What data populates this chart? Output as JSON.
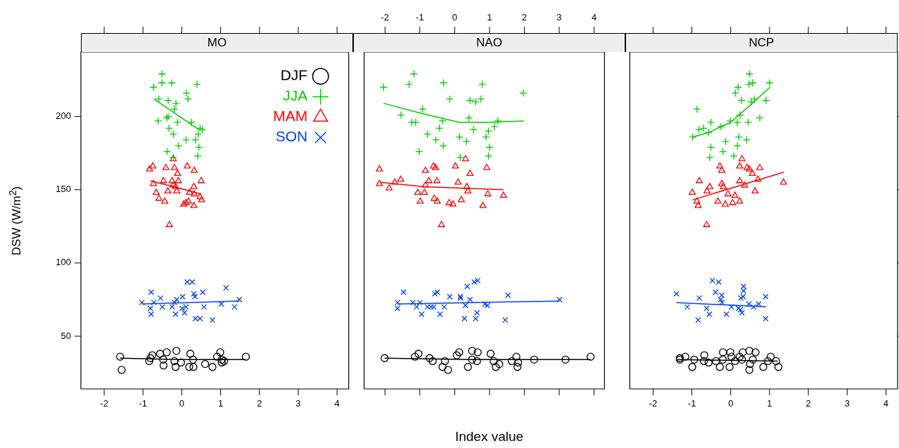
{
  "chart_data": [
    {
      "type": "scatter",
      "title": "MO",
      "ylabel": "DSW (W/m$^{2}$)",
      "xlim": [
        -2.6,
        4.3
      ],
      "xticks": [
        -2,
        -1,
        0,
        1,
        2,
        3,
        4
      ],
      "ylim": [
        14,
        244
      ],
      "yticks": [
        50,
        100,
        150,
        200
      ],
      "legend": "top right",
      "series": [
        {
          "name": "DJF",
          "color": "#000000",
          "marker": "circle",
          "x": [
            -1.59,
            -1.55,
            -0.84,
            -0.81,
            -0.76,
            -0.56,
            -0.39,
            -0.48,
            -0.47,
            -0.14,
            -0.19,
            -0.16,
            -0.02,
            0.22,
            0.29,
            0.19,
            0.3,
            0.6,
            0.79,
            0.99,
            0.91,
            1.03,
            1.09,
            1.03,
            1.65
          ],
          "values": [
            36,
            27,
            33,
            35,
            37,
            38,
            39,
            34,
            30,
            40,
            33,
            29,
            32,
            38,
            34,
            29,
            29,
            31,
            29,
            39,
            36,
            34,
            33,
            32,
            36
          ]
        },
        {
          "name": "JJA",
          "color": "#00cc00",
          "marker": "cross",
          "x": [
            -0.51,
            -0.73,
            -0.51,
            -0.26,
            0.39,
            0.12,
            0.16,
            -0.59,
            -0.35,
            -0.15,
            -0.19,
            -0.35,
            -0.61,
            -0.39,
            -0.11,
            0.25,
            0.47,
            0.53,
            -0.33,
            -0.22,
            0.11,
            0.35,
            -0.08,
            0.44,
            0.41,
            -0.38,
            -0.22,
            0.42
          ],
          "values": [
            229,
            220,
            223,
            223,
            222,
            216,
            212,
            212,
            211,
            209,
            205,
            200,
            197,
            199,
            196,
            196,
            192,
            191,
            192,
            188,
            184,
            184,
            180,
            179,
            173,
            176,
            172,
            188
          ]
        },
        {
          "name": "MAM",
          "color": "#ff0000",
          "marker": "triangle",
          "x": [
            -0.83,
            -0.75,
            -0.41,
            -0.19,
            0.14,
            0.32,
            -0.22,
            -0.11,
            0.5,
            -0.73,
            -0.47,
            -0.25,
            -0.09,
            -0.22,
            -0.16,
            0.31,
            -0.66,
            -0.36,
            -0.13,
            0.2,
            0.32,
            0.47,
            0.51,
            -0.59,
            -0.44,
            0.17,
            0.05,
            0.31,
            0.11,
            -0.32
          ],
          "values": [
            164,
            166,
            165,
            165,
            166,
            163,
            171,
            161,
            156,
            154,
            156,
            156,
            156,
            153,
            152,
            152,
            148,
            149,
            149,
            148,
            147,
            145,
            143,
            144,
            142,
            142,
            140,
            139,
            141,
            126
          ]
        },
        {
          "name": "SON",
          "color": "#0040ff",
          "marker": "x",
          "x": [
            -1.03,
            -0.81,
            -0.79,
            -0.79,
            -0.55,
            -0.72,
            -0.5,
            -0.25,
            -0.19,
            -0.13,
            0.02,
            -0.16,
            0.07,
            0.11,
            0.01,
            0.14,
            0.27,
            0.31,
            0.34,
            0.54,
            0.57,
            0.35,
            0.47,
            0.79,
            1.02,
            1.14,
            1.36,
            1.48
          ],
          "values": [
            73,
            69,
            65,
            80,
            76,
            73,
            70,
            70,
            73,
            75,
            77,
            65,
            66,
            70,
            69,
            87,
            87,
            79,
            77,
            80,
            70,
            62,
            62,
            61,
            72,
            83,
            70,
            75
          ]
        },
        {
          "type": "line",
          "color": "#000000",
          "x": [
            -1.59,
            0.08,
            1.65
          ],
          "values": [
            35,
            34,
            34
          ]
        },
        {
          "type": "line",
          "color": "#00cc00",
          "x": [
            -0.72,
            0.44
          ],
          "values": [
            212,
            191
          ]
        },
        {
          "type": "line",
          "color": "#ff0000",
          "x": [
            -0.81,
            -0.2,
            0.5
          ],
          "values": [
            156,
            152,
            147
          ]
        },
        {
          "type": "line",
          "color": "#0040ff",
          "x": [
            -1.03,
            1.48
          ],
          "values": [
            72,
            74
          ]
        }
      ]
    },
    {
      "type": "scatter",
      "title": "NAO",
      "xlabel": "Index value",
      "xlim": [
        -2.6,
        4.3
      ],
      "xticks": [
        -2,
        -1,
        0,
        1,
        2,
        3,
        4
      ],
      "ylim": [
        14,
        244
      ],
      "yticks": [
        50,
        100,
        150,
        200
      ],
      "tick_labels": "x",
      "series": [
        {
          "color": "#000000",
          "marker": "circle",
          "x": [
            -2.01,
            -1.14,
            -1.04,
            -0.72,
            -0.63,
            -0.35,
            -0.28,
            -0.19,
            0.06,
            0.13,
            0.38,
            0.5,
            0.5,
            0.66,
            0.64,
            1.03,
            1.12,
            1.18,
            1.28,
            1.64,
            1.77,
            1.8,
            1.82,
            2.28,
            3.18,
            3.9
          ],
          "values": [
            35,
            36,
            38,
            35,
            33,
            29,
            33,
            27,
            37,
            39,
            29,
            40,
            34,
            39,
            33,
            38,
            33,
            29,
            31,
            33,
            36,
            29,
            32,
            34,
            34,
            36
          ]
        },
        {
          "color": "#00cc00",
          "marker": "cross",
          "x": [
            -2.04,
            -1.17,
            -1.31,
            -0.32,
            0.79,
            1.97,
            -0.14,
            0.44,
            0.6,
            0.75,
            -0.92,
            -1.54,
            -1.23,
            -1.12,
            -0.35,
            0.41,
            1.24,
            1.14,
            -0.44,
            0.54,
            -0.78,
            0.97,
            0.9,
            0.14,
            0.34,
            -0.54,
            -0.33,
            1.0,
            -1.02,
            0.97,
            0.16
          ],
          "values": [
            220,
            229,
            222,
            223,
            222,
            216,
            212,
            211,
            210,
            212,
            205,
            201,
            196,
            196,
            197,
            199,
            197,
            193,
            192,
            191,
            188,
            190,
            186,
            186,
            183,
            184,
            180,
            179,
            176,
            173,
            172
          ]
        },
        {
          "color": "#ff0000",
          "marker": "triangle",
          "x": [
            -2.16,
            -2.16,
            -1.88,
            -1.72,
            -1.55,
            -0.84,
            -0.61,
            -0.55,
            0.02,
            0.31,
            0.44,
            0.92,
            -0.74,
            -0.51,
            0.1,
            -0.84,
            -1.06,
            -0.87,
            0.35,
            0.38,
            0.95,
            1.4,
            -0.99,
            -0.59,
            -0.5,
            -0.16,
            -0.05,
            0.19,
            0.81,
            -0.38
          ],
          "values": [
            164,
            154,
            151,
            155,
            157,
            163,
            166,
            165,
            166,
            171,
            161,
            165,
            156,
            156,
            155,
            153,
            148,
            148,
            152,
            149,
            147,
            146,
            142,
            144,
            142,
            141,
            140,
            143,
            139,
            126
          ]
        },
        {
          "color": "#0040ff",
          "marker": "x",
          "x": [
            -1.64,
            -1.64,
            -1.47,
            -1.2,
            -1.09,
            -1.0,
            -0.95,
            -0.78,
            -0.68,
            -0.6,
            -0.57,
            -0.5,
            -0.42,
            -0.3,
            -0.14,
            0.16,
            0.17,
            0.31,
            0.36,
            0.44,
            0.28,
            0.56,
            0.66,
            0.64,
            0.6,
            0.87,
            0.94,
            1.53,
            1.45,
            3.01
          ],
          "values": [
            73,
            69,
            80,
            73,
            70,
            73,
            65,
            70,
            70,
            70,
            79,
            80,
            65,
            70,
            77,
            77,
            76,
            71,
            84,
            75,
            62,
            87,
            88,
            66,
            62,
            72,
            71,
            78,
            61,
            75
          ]
        },
        {
          "type": "line",
          "color": "#000000",
          "x": [
            -2.01,
            0.5,
            3.9
          ],
          "values": [
            35,
            34,
            34
          ]
        },
        {
          "type": "line",
          "color": "#00cc00",
          "x": [
            -2.04,
            -0.93,
            0.14,
            0.97,
            1.98
          ],
          "values": [
            209,
            202,
            196,
            196,
            197
          ]
        },
        {
          "type": "line",
          "color": "#ff0000",
          "x": [
            -2.13,
            -0.87,
            1.4
          ],
          "values": [
            155,
            152,
            150
          ]
        },
        {
          "type": "line",
          "color": "#0040ff",
          "x": [
            -1.64,
            3.01
          ],
          "values": [
            72,
            74
          ]
        }
      ]
    },
    {
      "type": "scatter",
      "title": "NCP",
      "xlim": [
        -2.6,
        4.3
      ],
      "xticks": [
        -2,
        -1,
        0,
        1,
        2,
        3,
        4
      ],
      "ylim": [
        14,
        244
      ],
      "yticks": [
        50,
        100,
        150,
        200
      ],
      "tick_labels": "x",
      "series": [
        {
          "color": "#000000",
          "marker": "circle",
          "x": [
            -1.31,
            -1.31,
            -1.17,
            -0.99,
            -0.94,
            -0.68,
            -0.69,
            -0.57,
            -0.38,
            -0.28,
            -0.2,
            -0.2,
            -0.01,
            0.02,
            -0.03,
            0.11,
            0.23,
            0.31,
            0.29,
            0.48,
            0.5,
            0.48,
            0.57,
            0.64,
            0.84,
            0.96,
            1.03,
            1.17,
            1.23
          ],
          "values": [
            35,
            34,
            36,
            29,
            34,
            37,
            33,
            32,
            33,
            29,
            39,
            34,
            39,
            36,
            29,
            33,
            36,
            39,
            34,
            40,
            31,
            27,
            34,
            39,
            29,
            33,
            36,
            33,
            29
          ]
        },
        {
          "color": "#00cc00",
          "marker": "cross",
          "x": [
            0.48,
            0.19,
            0.47,
            0.57,
            1.0,
            0.12,
            0.28,
            0.53,
            0.61,
            0.91,
            -0.87,
            0.24,
            -0.01,
            0.17,
            0.45,
            0.75,
            -0.51,
            -0.25,
            -0.7,
            -0.82,
            -0.57,
            -0.98,
            0.21,
            -0.13,
            0.41,
            -0.51,
            0.17,
            -0.2,
            0.08,
            -0.54
          ],
          "values": [
            229,
            220,
            222,
            223,
            223,
            216,
            211,
            210,
            212,
            211,
            205,
            201,
            197,
            196,
            196,
            199,
            196,
            193,
            192,
            191,
            189,
            186,
            186,
            183,
            184,
            179,
            180,
            176,
            173,
            172
          ]
        },
        {
          "color": "#ff0000",
          "marker": "triangle",
          "x": [
            0.29,
            -0.28,
            0.23,
            0.42,
            0.48,
            0.75,
            -0.23,
            0.56,
            -0.81,
            0.7,
            0.23,
            -0.23,
            -0.54,
            0.36,
            1.36,
            -0.19,
            -0.99,
            -0.61,
            0.63,
            -0.07,
            0.11,
            -0.87,
            -0.84,
            -0.33,
            -0.14,
            0.05,
            0.23,
            -0.62
          ],
          "values": [
            171,
            166,
            166,
            165,
            164,
            165,
            163,
            161,
            156,
            157,
            156,
            154,
            152,
            153,
            155,
            152,
            148,
            149,
            149,
            147,
            146,
            142,
            139,
            142,
            140,
            141,
            142,
            126
          ]
        },
        {
          "color": "#0040ff",
          "marker": "x",
          "x": [
            -1.4,
            -1.12,
            -0.84,
            -0.81,
            -0.62,
            -0.55,
            -0.47,
            -0.31,
            -0.39,
            -0.23,
            -0.26,
            -0.22,
            -0.11,
            0.02,
            0.2,
            0.25,
            0.29,
            0.26,
            0.32,
            0.33,
            0.33,
            0.47,
            0.59,
            0.72,
            0.9,
            0.9
          ],
          "values": [
            79,
            70,
            61,
            76,
            69,
            65,
            88,
            87,
            80,
            78,
            75,
            73,
            65,
            70,
            69,
            68,
            66,
            76,
            77,
            81,
            84,
            72,
            70,
            72,
            77,
            62
          ]
        },
        {
          "type": "line",
          "color": "#000000",
          "x": [
            -1.37,
            1.21
          ],
          "values": [
            34,
            33
          ]
        },
        {
          "type": "line",
          "color": "#00cc00",
          "x": [
            -0.98,
            -0.57,
            -0.01,
            0.56,
            1.01
          ],
          "values": [
            186,
            189,
            196,
            209,
            220
          ]
        },
        {
          "type": "line",
          "color": "#ff0000",
          "x": [
            -0.99,
            1.37
          ],
          "values": [
            143,
            162
          ]
        },
        {
          "type": "line",
          "color": "#0040ff",
          "x": [
            -1.4,
            0.91
          ],
          "values": [
            73,
            70
          ]
        }
      ]
    }
  ]
}
